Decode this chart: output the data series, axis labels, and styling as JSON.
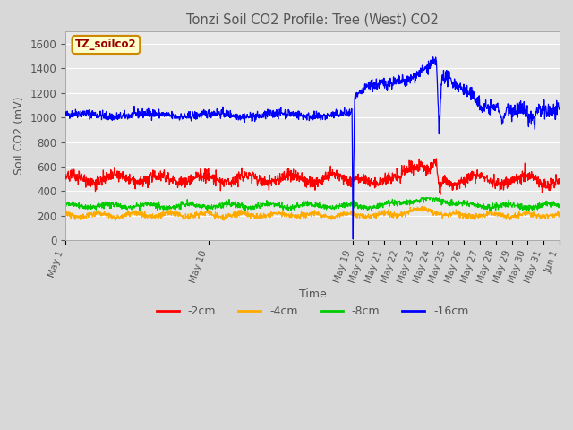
{
  "title": "Tonzi Soil CO2 Profile: Tree (West) CO2",
  "ylabel": "Soil CO2 (mV)",
  "xlabel": "Time",
  "annotation": "TZ_soilco2",
  "legend_labels": [
    "-2cm",
    "-4cm",
    "-8cm",
    "-16cm"
  ],
  "legend_colors": [
    "#ff0000",
    "#ffaa00",
    "#00cc00",
    "#0000ff"
  ],
  "ylim": [
    0,
    1700
  ],
  "yticks": [
    0,
    200,
    400,
    600,
    800,
    1000,
    1200,
    1400,
    1600
  ],
  "background_color": "#d8d8d8",
  "plot_background": "#e8e8e8",
  "title_color": "#555555",
  "label_color": "#555555",
  "grid_color": "#ffffff",
  "anno_facecolor": "#ffffcc",
  "anno_edgecolor": "#cc8800",
  "anno_textcolor": "#990000"
}
